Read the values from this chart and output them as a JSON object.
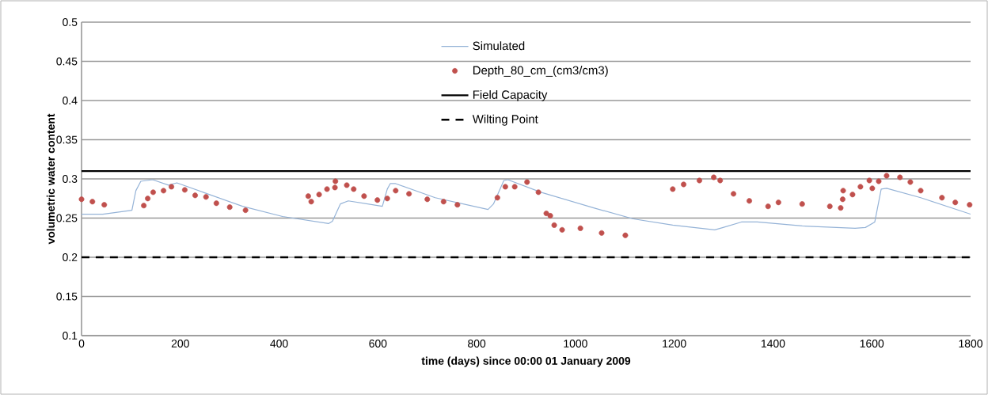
{
  "chart_data": {
    "type": "line",
    "xlabel": "time (days) since 00:00 01 January 2009",
    "ylabel": "volumetric water content",
    "xlim": [
      0,
      1800
    ],
    "ylim": [
      0.1,
      0.5
    ],
    "xticks": [
      0,
      200,
      400,
      600,
      800,
      1000,
      1200,
      1400,
      1600,
      1800
    ],
    "yticks": [
      0.1,
      0.15,
      0.2,
      0.25,
      0.3,
      0.35,
      0.4,
      0.45,
      0.5
    ],
    "grid": "y",
    "legend": "top",
    "series": [
      {
        "name": "Simulated",
        "color": "#95b3d7",
        "line_style": "solid",
        "x": [
          0,
          43,
          102,
          110,
          120,
          144,
          176,
          193,
          246,
          326,
          407,
          500,
          508,
          524,
          540,
          609,
          619,
          625,
          636,
          716,
          823,
          834,
          855,
          863,
          930,
          1037,
          1117,
          1197,
          1282,
          1299,
          1336,
          1368,
          1459,
          1566,
          1587,
          1606,
          1619,
          1630,
          1699,
          1800
        ],
        "values": [
          0.255,
          0.255,
          0.26,
          0.285,
          0.297,
          0.299,
          0.292,
          0.295,
          0.283,
          0.265,
          0.252,
          0.243,
          0.246,
          0.268,
          0.272,
          0.265,
          0.287,
          0.294,
          0.294,
          0.276,
          0.261,
          0.268,
          0.298,
          0.299,
          0.283,
          0.263,
          0.249,
          0.241,
          0.235,
          0.238,
          0.245,
          0.245,
          0.24,
          0.237,
          0.238,
          0.245,
          0.287,
          0.288,
          0.276,
          0.255
        ]
      },
      {
        "name": "Depth_80_cm_(cm3/cm3)",
        "type": "scatter",
        "color": "#c0504d",
        "marker": "circle",
        "x": [
          0,
          22,
          46,
          126,
          134,
          145,
          166,
          182,
          209,
          230,
          252,
          273,
          300,
          332,
          459,
          465,
          481,
          497,
          514,
          513,
          537,
          551,
          572,
          599,
          619,
          636,
          663,
          700,
          733,
          761,
          842,
          858,
          877,
          902,
          925,
          941,
          949,
          957,
          973,
          1010,
          1053,
          1101,
          1197,
          1219,
          1251,
          1280,
          1293,
          1320,
          1352,
          1390,
          1411,
          1459,
          1515,
          1537,
          1541,
          1542,
          1561,
          1577,
          1595,
          1601,
          1614,
          1630,
          1657,
          1678,
          1699,
          1742,
          1769,
          1798
        ],
        "values": [
          0.274,
          0.271,
          0.267,
          0.266,
          0.275,
          0.283,
          0.285,
          0.29,
          0.286,
          0.279,
          0.277,
          0.269,
          0.264,
          0.26,
          0.278,
          0.271,
          0.28,
          0.287,
          0.297,
          0.289,
          0.292,
          0.287,
          0.278,
          0.273,
          0.275,
          0.285,
          0.281,
          0.274,
          0.271,
          0.267,
          0.276,
          0.29,
          0.29,
          0.296,
          0.283,
          0.256,
          0.253,
          0.241,
          0.235,
          0.237,
          0.231,
          0.228,
          0.287,
          0.293,
          0.298,
          0.302,
          0.298,
          0.281,
          0.272,
          0.265,
          0.27,
          0.268,
          0.265,
          0.263,
          0.274,
          0.285,
          0.28,
          0.29,
          0.298,
          0.288,
          0.297,
          0.304,
          0.302,
          0.296,
          0.285,
          0.276,
          0.27,
          0.267
        ]
      },
      {
        "name": "Field Capacity",
        "color": "#000000",
        "line_style": "solid",
        "x": [
          0,
          1800
        ],
        "values": [
          0.31,
          0.31
        ]
      },
      {
        "name": "Wilting Point",
        "color": "#000000",
        "line_style": "dashed",
        "x": [
          0,
          1800
        ],
        "values": [
          0.2,
          0.2
        ]
      }
    ]
  }
}
